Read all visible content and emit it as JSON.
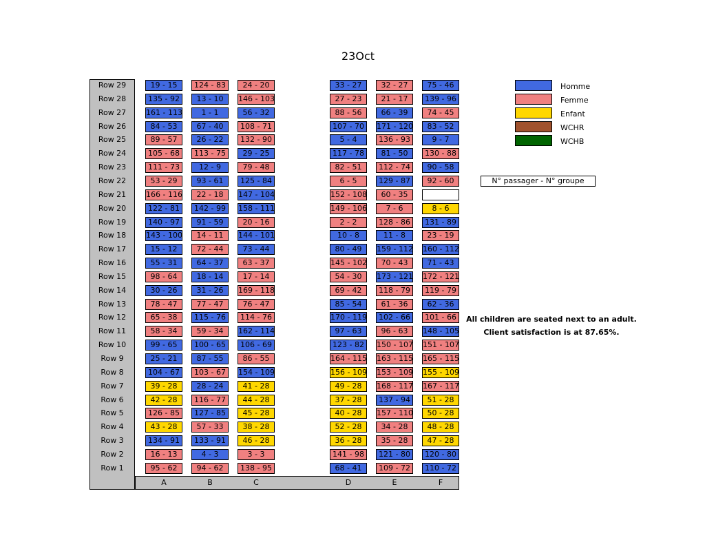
{
  "chart_data": {
    "type": "table",
    "title": "23Oct",
    "columns": [
      "A",
      "B",
      "C",
      "D",
      "E",
      "F"
    ],
    "legend": [
      {
        "label": "Homme",
        "color": "#4169e1"
      },
      {
        "label": "Femme",
        "color": "#f08080"
      },
      {
        "label": "Enfant",
        "color": "#ffd700"
      },
      {
        "label": "WCHR",
        "color": "#a0522d"
      },
      {
        "label": "WCHB",
        "color": "#006400"
      }
    ],
    "key_label": "N° passager - N° groupe",
    "notes": [
      "All children are seated next to an adult.",
      "Client satisfaction is at 87.65%."
    ],
    "rows": [
      {
        "label": "Row 29",
        "seats": [
          [
            "19 - 15",
            "H"
          ],
          [
            "124 - 83",
            "F"
          ],
          [
            "24 - 20",
            "F"
          ],
          [
            "33 - 27",
            "H"
          ],
          [
            "32 - 27",
            "F"
          ],
          [
            "75 - 46",
            "H"
          ]
        ]
      },
      {
        "label": "Row 28",
        "seats": [
          [
            "135 - 92",
            "H"
          ],
          [
            "13 - 10",
            "H"
          ],
          [
            "146 - 103",
            "F"
          ],
          [
            "27 - 23",
            "F"
          ],
          [
            "21 - 17",
            "F"
          ],
          [
            "139 - 96",
            "H"
          ]
        ]
      },
      {
        "label": "Row 27",
        "seats": [
          [
            "161 - 113",
            "H"
          ],
          [
            "1 - 1",
            "H"
          ],
          [
            "56 - 32",
            "H"
          ],
          [
            "88 - 56",
            "F"
          ],
          [
            "66 - 39",
            "H"
          ],
          [
            "74 - 45",
            "F"
          ]
        ]
      },
      {
        "label": "Row 26",
        "seats": [
          [
            "84 - 53",
            "H"
          ],
          [
            "67 - 40",
            "H"
          ],
          [
            "108 - 71",
            "F"
          ],
          [
            "107 - 70",
            "H"
          ],
          [
            "171 - 120",
            "H"
          ],
          [
            "83 - 52",
            "H"
          ]
        ]
      },
      {
        "label": "Row 25",
        "seats": [
          [
            "89 - 57",
            "F"
          ],
          [
            "26 - 22",
            "H"
          ],
          [
            "132 - 90",
            "F"
          ],
          [
            "5 - 4",
            "H"
          ],
          [
            "136 - 93",
            "F"
          ],
          [
            "9 - 7",
            "H"
          ]
        ]
      },
      {
        "label": "Row 24",
        "seats": [
          [
            "105 - 68",
            "F"
          ],
          [
            "113 - 75",
            "F"
          ],
          [
            "29 - 25",
            "H"
          ],
          [
            "117 - 78",
            "H"
          ],
          [
            "81 - 50",
            "H"
          ],
          [
            "130 - 88",
            "F"
          ]
        ]
      },
      {
        "label": "Row 23",
        "seats": [
          [
            "111 - 73",
            "F"
          ],
          [
            "12 - 9",
            "H"
          ],
          [
            "79 - 48",
            "F"
          ],
          [
            "82 - 51",
            "F"
          ],
          [
            "112 - 74",
            "F"
          ],
          [
            "90 - 58",
            "H"
          ]
        ]
      },
      {
        "label": "Row 22",
        "seats": [
          [
            "53 - 29",
            "F"
          ],
          [
            "93 - 61",
            "H"
          ],
          [
            "125 - 84",
            "H"
          ],
          [
            "6 - 5",
            "F"
          ],
          [
            "129 - 87",
            "H"
          ],
          [
            "92 - 60",
            "F"
          ]
        ]
      },
      {
        "label": "Row 21",
        "seats": [
          [
            "166 - 116",
            "F"
          ],
          [
            "22 - 18",
            "F"
          ],
          [
            "147 - 104",
            "H"
          ],
          [
            "152 - 108",
            "F"
          ],
          [
            "60 - 35",
            "F"
          ],
          [
            "",
            "E"
          ]
        ]
      },
      {
        "label": "Row 20",
        "seats": [
          [
            "122 - 81",
            "H"
          ],
          [
            "142 - 99",
            "H"
          ],
          [
            "158 - 111",
            "H"
          ],
          [
            "149 - 106",
            "F"
          ],
          [
            "7 - 6",
            "F"
          ],
          [
            "8 - 6",
            "C"
          ]
        ]
      },
      {
        "label": "Row 19",
        "seats": [
          [
            "140 - 97",
            "H"
          ],
          [
            "91 - 59",
            "H"
          ],
          [
            "20 - 16",
            "F"
          ],
          [
            "2 - 2",
            "F"
          ],
          [
            "128 - 86",
            "F"
          ],
          [
            "131 - 89",
            "H"
          ]
        ]
      },
      {
        "label": "Row 18",
        "seats": [
          [
            "143 - 100",
            "H"
          ],
          [
            "14 - 11",
            "F"
          ],
          [
            "144 - 101",
            "H"
          ],
          [
            "10 - 8",
            "H"
          ],
          [
            "11 - 8",
            "H"
          ],
          [
            "23 - 19",
            "F"
          ]
        ]
      },
      {
        "label": "Row 17",
        "seats": [
          [
            "15 - 12",
            "H"
          ],
          [
            "72 - 44",
            "F"
          ],
          [
            "73 - 44",
            "H"
          ],
          [
            "80 - 49",
            "H"
          ],
          [
            "159 - 112",
            "H"
          ],
          [
            "160 - 112",
            "H"
          ]
        ]
      },
      {
        "label": "Row 16",
        "seats": [
          [
            "55 - 31",
            "H"
          ],
          [
            "64 - 37",
            "H"
          ],
          [
            "63 - 37",
            "F"
          ],
          [
            "145 - 102",
            "F"
          ],
          [
            "70 - 43",
            "F"
          ],
          [
            "71 - 43",
            "H"
          ]
        ]
      },
      {
        "label": "Row 15",
        "seats": [
          [
            "98 - 64",
            "F"
          ],
          [
            "18 - 14",
            "H"
          ],
          [
            "17 - 14",
            "F"
          ],
          [
            "54 - 30",
            "F"
          ],
          [
            "173 - 121",
            "H"
          ],
          [
            "172 - 121",
            "F"
          ]
        ]
      },
      {
        "label": "Row 14",
        "seats": [
          [
            "30 - 26",
            "H"
          ],
          [
            "31 - 26",
            "H"
          ],
          [
            "169 - 118",
            "F"
          ],
          [
            "69 - 42",
            "F"
          ],
          [
            "118 - 79",
            "F"
          ],
          [
            "119 - 79",
            "F"
          ]
        ]
      },
      {
        "label": "Row 13",
        "seats": [
          [
            "78 - 47",
            "F"
          ],
          [
            "77 - 47",
            "F"
          ],
          [
            "76 - 47",
            "F"
          ],
          [
            "85 - 54",
            "H"
          ],
          [
            "61 - 36",
            "F"
          ],
          [
            "62 - 36",
            "H"
          ]
        ]
      },
      {
        "label": "Row 12",
        "seats": [
          [
            "65 - 38",
            "F"
          ],
          [
            "115 - 76",
            "H"
          ],
          [
            "114 - 76",
            "F"
          ],
          [
            "170 - 119",
            "H"
          ],
          [
            "102 - 66",
            "H"
          ],
          [
            "101 - 66",
            "F"
          ]
        ]
      },
      {
        "label": "Row 11",
        "seats": [
          [
            "58 - 34",
            "F"
          ],
          [
            "59 - 34",
            "F"
          ],
          [
            "162 - 114",
            "H"
          ],
          [
            "97 - 63",
            "H"
          ],
          [
            "96 - 63",
            "F"
          ],
          [
            "148 - 105",
            "H"
          ]
        ]
      },
      {
        "label": "Row 10",
        "seats": [
          [
            "99 - 65",
            "H"
          ],
          [
            "100 - 65",
            "H"
          ],
          [
            "106 - 69",
            "H"
          ],
          [
            "123 - 82",
            "H"
          ],
          [
            "150 - 107",
            "F"
          ],
          [
            "151 - 107",
            "F"
          ]
        ]
      },
      {
        "label": "Row 9",
        "seats": [
          [
            "25 - 21",
            "H"
          ],
          [
            "87 - 55",
            "H"
          ],
          [
            "86 - 55",
            "F"
          ],
          [
            "164 - 115",
            "F"
          ],
          [
            "163 - 115",
            "F"
          ],
          [
            "165 - 115",
            "F"
          ]
        ]
      },
      {
        "label": "Row 8",
        "seats": [
          [
            "104 - 67",
            "H"
          ],
          [
            "103 - 67",
            "F"
          ],
          [
            "154 - 109",
            "H"
          ],
          [
            "156 - 109",
            "C"
          ],
          [
            "153 - 109",
            "F"
          ],
          [
            "155 - 109",
            "C"
          ]
        ]
      },
      {
        "label": "Row 7",
        "seats": [
          [
            "39 - 28",
            "C"
          ],
          [
            "28 - 24",
            "H"
          ],
          [
            "41 - 28",
            "C"
          ],
          [
            "49 - 28",
            "C"
          ],
          [
            "168 - 117",
            "F"
          ],
          [
            "167 - 117",
            "F"
          ]
        ]
      },
      {
        "label": "Row 6",
        "seats": [
          [
            "42 - 28",
            "C"
          ],
          [
            "116 - 77",
            "F"
          ],
          [
            "44 - 28",
            "C"
          ],
          [
            "37 - 28",
            "C"
          ],
          [
            "137 - 94",
            "H"
          ],
          [
            "51 - 28",
            "C"
          ]
        ]
      },
      {
        "label": "Row 5",
        "seats": [
          [
            "126 - 85",
            "F"
          ],
          [
            "127 - 85",
            "H"
          ],
          [
            "45 - 28",
            "C"
          ],
          [
            "40 - 28",
            "C"
          ],
          [
            "157 - 110",
            "F"
          ],
          [
            "50 - 28",
            "C"
          ]
        ]
      },
      {
        "label": "Row 4",
        "seats": [
          [
            "43 - 28",
            "C"
          ],
          [
            "57 - 33",
            "F"
          ],
          [
            "38 - 28",
            "C"
          ],
          [
            "52 - 28",
            "C"
          ],
          [
            "34 - 28",
            "F"
          ],
          [
            "48 - 28",
            "C"
          ]
        ]
      },
      {
        "label": "Row 3",
        "seats": [
          [
            "134 - 91",
            "H"
          ],
          [
            "133 - 91",
            "H"
          ],
          [
            "46 - 28",
            "C"
          ],
          [
            "36 - 28",
            "C"
          ],
          [
            "35 - 28",
            "F"
          ],
          [
            "47 - 28",
            "C"
          ]
        ]
      },
      {
        "label": "Row 2",
        "seats": [
          [
            "16 - 13",
            "F"
          ],
          [
            "4 - 3",
            "H"
          ],
          [
            "3 - 3",
            "F"
          ],
          [
            "141 - 98",
            "F"
          ],
          [
            "121 - 80",
            "H"
          ],
          [
            "120 - 80",
            "H"
          ]
        ]
      },
      {
        "label": "Row 1",
        "seats": [
          [
            "95 - 62",
            "F"
          ],
          [
            "94 - 62",
            "F"
          ],
          [
            "138 - 95",
            "F"
          ],
          [
            "68 - 41",
            "H"
          ],
          [
            "109 - 72",
            "F"
          ],
          [
            "110 - 72",
            "H"
          ]
        ]
      }
    ],
    "category_colors": {
      "H": "#4169e1",
      "F": "#f08080",
      "C": "#ffd700",
      "E": "#ffffff"
    }
  }
}
